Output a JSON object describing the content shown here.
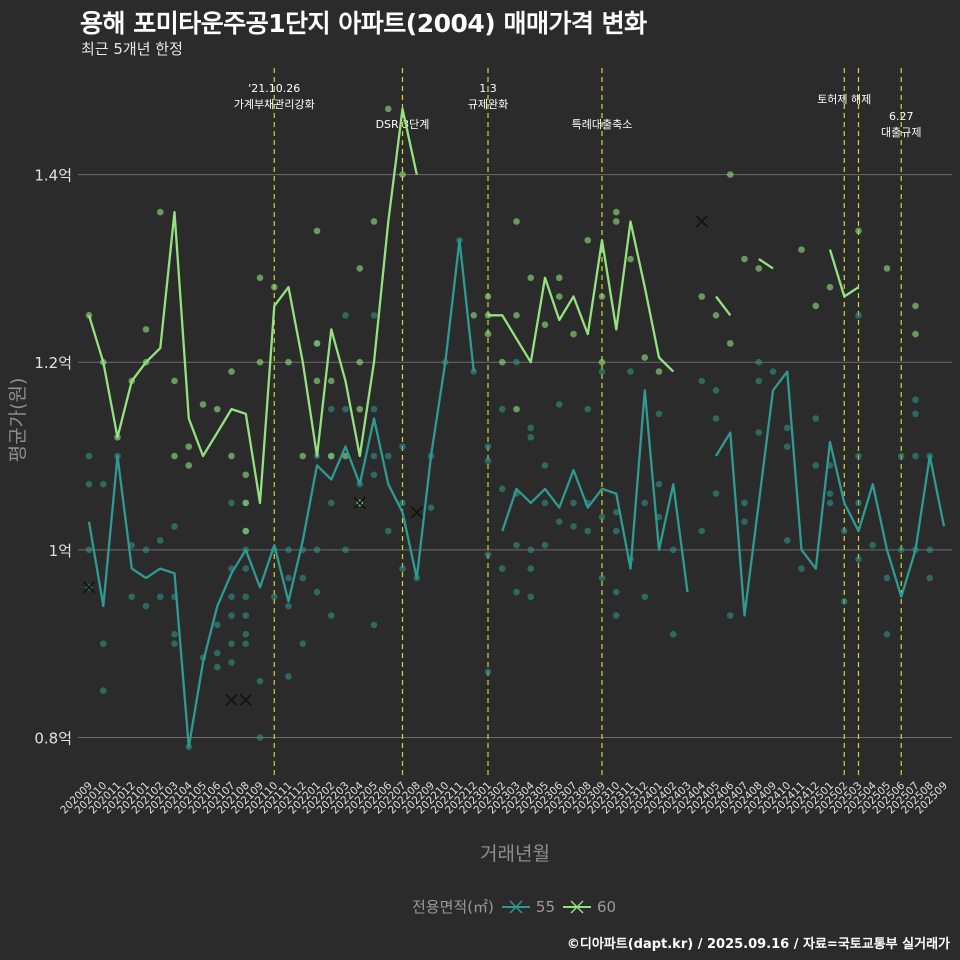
{
  "title": "용해 포미타운주공1단지 아파트(2004) 매매가격 변화",
  "subtitle": "최근 5개년 한정",
  "caption": "©디아파트(dapt.kr) / 2025.09.16 / 자료=국토교통부 실거래가",
  "legend": {
    "title": "전용면적(㎡)"
  },
  "colors": {
    "background": "#2b2b2b",
    "grid": "#6b6b6b",
    "event_line": "#d6d62e",
    "s55": "#2f9a91",
    "s60": "#93e27f"
  },
  "chart_data": {
    "type": "line",
    "xlabel": "거래년월",
    "ylabel": "평균가(원)",
    "ylim": [
      0.76,
      1.52
    ],
    "y_ticks": [
      {
        "value": 0.8,
        "label": "0.8억"
      },
      {
        "value": 1.0,
        "label": "1억"
      },
      {
        "value": 1.2,
        "label": "1.2억"
      },
      {
        "value": 1.4,
        "label": "1.4억"
      }
    ],
    "categories": [
      "202009",
      "202010",
      "202011",
      "202012",
      "202101",
      "202102",
      "202103",
      "202104",
      "202105",
      "202106",
      "202107",
      "202108",
      "202109",
      "202110",
      "202111",
      "202112",
      "202201",
      "202202",
      "202203",
      "202204",
      "202205",
      "202206",
      "202207",
      "202208",
      "202209",
      "202210",
      "202211",
      "202212",
      "202301",
      "202302",
      "202303",
      "202304",
      "202305",
      "202306",
      "202307",
      "202308",
      "202309",
      "202310",
      "202311",
      "202312",
      "202401",
      "202402",
      "202403",
      "202404",
      "202405",
      "202406",
      "202407",
      "202408",
      "202409",
      "202410",
      "202411",
      "202412",
      "202501",
      "202502",
      "202503",
      "202504",
      "202505",
      "202506",
      "202507",
      "202508",
      "202509"
    ],
    "series": [
      {
        "name": "55",
        "color": "#2f9a91",
        "values": [
          1.03,
          0.94,
          1.1,
          0.98,
          0.97,
          0.98,
          0.975,
          0.79,
          0.88,
          0.94,
          0.975,
          1.0,
          0.96,
          1.005,
          0.945,
          1.01,
          1.09,
          1.075,
          1.11,
          1.07,
          1.14,
          1.07,
          1.04,
          0.97,
          1.1,
          1.2,
          1.33,
          1.19,
          null,
          1.02,
          1.065,
          1.05,
          1.065,
          1.045,
          1.085,
          1.045,
          1.065,
          1.06,
          0.98,
          1.17,
          1.0,
          1.07,
          0.955,
          null,
          1.1,
          1.125,
          0.93,
          1.05,
          1.17,
          1.19,
          1.0,
          0.98,
          1.115,
          1.05,
          1.02,
          1.07,
          1.0,
          0.95,
          1.0,
          1.1,
          1.025
        ]
      },
      {
        "name": "60",
        "color": "#93e27f",
        "values": [
          1.25,
          1.2,
          1.12,
          1.18,
          1.2,
          1.215,
          1.36,
          1.14,
          1.1,
          1.125,
          1.15,
          1.145,
          1.05,
          1.26,
          1.28,
          1.2,
          1.1,
          1.235,
          1.18,
          1.1,
          1.2,
          1.35,
          1.47,
          1.4,
          null,
          null,
          null,
          null,
          1.25,
          1.25,
          1.225,
          1.2,
          1.29,
          1.245,
          1.27,
          1.23,
          1.33,
          1.235,
          1.35,
          1.28,
          1.205,
          1.19,
          null,
          null,
          1.27,
          1.25,
          null,
          1.31,
          1.3,
          null,
          null,
          null,
          1.32,
          1.27,
          1.28,
          null,
          1.34,
          null,
          1.3,
          null,
          1.25
        ]
      }
    ],
    "scatter_55": [
      [
        0,
        1.1
      ],
      [
        0,
        1.07
      ],
      [
        0,
        1.0
      ],
      [
        0,
        0.96
      ],
      [
        1,
        1.07
      ],
      [
        1,
        0.9
      ],
      [
        1,
        0.85
      ],
      [
        2,
        1.1
      ],
      [
        3,
        1.005
      ],
      [
        3,
        0.95
      ],
      [
        4,
        1.0
      ],
      [
        4,
        0.94
      ],
      [
        5,
        1.01
      ],
      [
        5,
        0.95
      ],
      [
        6,
        1.025
      ],
      [
        6,
        0.95
      ],
      [
        6,
        0.91
      ],
      [
        6,
        0.9
      ],
      [
        7,
        0.79
      ],
      [
        8,
        0.885
      ],
      [
        9,
        0.92
      ],
      [
        9,
        0.89
      ],
      [
        9,
        0.875
      ],
      [
        10,
        1.05
      ],
      [
        10,
        0.98
      ],
      [
        10,
        0.95
      ],
      [
        10,
        0.93
      ],
      [
        10,
        0.9
      ],
      [
        10,
        0.88
      ],
      [
        11,
        1.05
      ],
      [
        11,
        1.02
      ],
      [
        11,
        1.0
      ],
      [
        11,
        0.98
      ],
      [
        11,
        0.95
      ],
      [
        11,
        0.93
      ],
      [
        11,
        0.91
      ],
      [
        11,
        0.9
      ],
      [
        12,
        0.86
      ],
      [
        12,
        0.8
      ],
      [
        13,
        1.0
      ],
      [
        13,
        0.95
      ],
      [
        14,
        1.0
      ],
      [
        14,
        0.97
      ],
      [
        14,
        0.94
      ],
      [
        14,
        0.865
      ],
      [
        15,
        1.0
      ],
      [
        15,
        0.97
      ],
      [
        15,
        0.9
      ],
      [
        16,
        1.22
      ],
      [
        16,
        1.1
      ],
      [
        16,
        1.0
      ],
      [
        16,
        0.955
      ],
      [
        17,
        1.15
      ],
      [
        17,
        1.1
      ],
      [
        17,
        1.05
      ],
      [
        17,
        0.93
      ],
      [
        18,
        1.25
      ],
      [
        18,
        1.15
      ],
      [
        18,
        1.0
      ],
      [
        19,
        1.07
      ],
      [
        19,
        1.05
      ],
      [
        20,
        1.25
      ],
      [
        20,
        1.15
      ],
      [
        20,
        1.1
      ],
      [
        20,
        1.08
      ],
      [
        20,
        0.92
      ],
      [
        21,
        1.1
      ],
      [
        21,
        1.02
      ],
      [
        22,
        1.11
      ],
      [
        22,
        1.05
      ],
      [
        22,
        0.98
      ],
      [
        23,
        0.97
      ],
      [
        24,
        1.1
      ],
      [
        24,
        1.045
      ],
      [
        25,
        1.2
      ],
      [
        26,
        1.33
      ],
      [
        27,
        1.19
      ],
      [
        28,
        1.11
      ],
      [
        28,
        1.095
      ],
      [
        28,
        0.995
      ],
      [
        28,
        0.87
      ],
      [
        29,
        1.15
      ],
      [
        29,
        1.065
      ],
      [
        29,
        0.98
      ],
      [
        30,
        1.2
      ],
      [
        30,
        1.06
      ],
      [
        30,
        1.005
      ],
      [
        30,
        0.955
      ],
      [
        31,
        1.13
      ],
      [
        31,
        1.12
      ],
      [
        31,
        1.0
      ],
      [
        31,
        0.98
      ],
      [
        31,
        0.95
      ],
      [
        32,
        1.09
      ],
      [
        32,
        1.05
      ],
      [
        32,
        1.005
      ],
      [
        33,
        1.155
      ],
      [
        33,
        1.03
      ],
      [
        34,
        1.05
      ],
      [
        34,
        1.025
      ],
      [
        35,
        1.15
      ],
      [
        35,
        1.05
      ],
      [
        35,
        1.02
      ],
      [
        36,
        1.19
      ],
      [
        36,
        1.035
      ],
      [
        36,
        0.97
      ],
      [
        37,
        1.04
      ],
      [
        37,
        1.02
      ],
      [
        37,
        0.955
      ],
      [
        37,
        0.93
      ],
      [
        38,
        1.19
      ],
      [
        38,
        0.99
      ],
      [
        39,
        1.05
      ],
      [
        39,
        0.95
      ],
      [
        40,
        1.145
      ],
      [
        40,
        1.07
      ],
      [
        40,
        1.035
      ],
      [
        41,
        1.0
      ],
      [
        41,
        0.91
      ],
      [
        43,
        1.18
      ],
      [
        43,
        1.02
      ],
      [
        44,
        1.17
      ],
      [
        44,
        1.14
      ],
      [
        44,
        1.06
      ],
      [
        45,
        0.93
      ],
      [
        46,
        1.05
      ],
      [
        46,
        1.03
      ],
      [
        47,
        1.2
      ],
      [
        47,
        1.18
      ],
      [
        47,
        1.125
      ],
      [
        48,
        1.19
      ],
      [
        49,
        1.13
      ],
      [
        49,
        1.11
      ],
      [
        49,
        1.01
      ],
      [
        50,
        0.98
      ],
      [
        51,
        1.14
      ],
      [
        51,
        1.09
      ],
      [
        52,
        1.09
      ],
      [
        52,
        1.06
      ],
      [
        52,
        1.05
      ],
      [
        53,
        1.02
      ],
      [
        53,
        0.945
      ],
      [
        54,
        1.25
      ],
      [
        54,
        1.1
      ],
      [
        54,
        1.05
      ],
      [
        54,
        0.99
      ],
      [
        55,
        1.005
      ],
      [
        56,
        0.97
      ],
      [
        56,
        0.91
      ],
      [
        57,
        1.1
      ],
      [
        57,
        1.0
      ],
      [
        58,
        1.16
      ],
      [
        58,
        1.145
      ],
      [
        58,
        1.1
      ],
      [
        58,
        1.0
      ],
      [
        59,
        1.1
      ],
      [
        59,
        1.0
      ],
      [
        59,
        0.97
      ]
    ],
    "scatter_60": [
      [
        0,
        1.25
      ],
      [
        1,
        1.2
      ],
      [
        2,
        1.12
      ],
      [
        3,
        1.18
      ],
      [
        4,
        1.2
      ],
      [
        4,
        1.235
      ],
      [
        5,
        1.36
      ],
      [
        6,
        1.18
      ],
      [
        6,
        1.1
      ],
      [
        7,
        1.11
      ],
      [
        7,
        1.09
      ],
      [
        8,
        1.155
      ],
      [
        9,
        1.15
      ],
      [
        10,
        1.1
      ],
      [
        10,
        1.19
      ],
      [
        11,
        1.08
      ],
      [
        11,
        1.02
      ],
      [
        11,
        1.05
      ],
      [
        12,
        1.29
      ],
      [
        12,
        1.2
      ],
      [
        13,
        1.28
      ],
      [
        14,
        1.2
      ],
      [
        15,
        1.1
      ],
      [
        16,
        1.34
      ],
      [
        16,
        1.22
      ],
      [
        16,
        1.18
      ],
      [
        17,
        1.18
      ],
      [
        17,
        1.1
      ],
      [
        18,
        1.1
      ],
      [
        19,
        1.3
      ],
      [
        19,
        1.15
      ],
      [
        19,
        1.2
      ],
      [
        19,
        1.05
      ],
      [
        20,
        1.35
      ],
      [
        21,
        1.47
      ],
      [
        22,
        1.4
      ],
      [
        27,
        1.25
      ],
      [
        28,
        1.25
      ],
      [
        28,
        1.27
      ],
      [
        28,
        1.23
      ],
      [
        29,
        1.2
      ],
      [
        30,
        1.35
      ],
      [
        30,
        1.25
      ],
      [
        30,
        1.15
      ],
      [
        31,
        1.29
      ],
      [
        32,
        1.24
      ],
      [
        33,
        1.27
      ],
      [
        33,
        1.29
      ],
      [
        34,
        1.23
      ],
      [
        35,
        1.33
      ],
      [
        36,
        1.2
      ],
      [
        36,
        1.27
      ],
      [
        37,
        1.35
      ],
      [
        37,
        1.36
      ],
      [
        38,
        1.31
      ],
      [
        39,
        1.205
      ],
      [
        40,
        1.19
      ],
      [
        43,
        1.27
      ],
      [
        44,
        1.25
      ],
      [
        45,
        1.4
      ],
      [
        45,
        1.22
      ],
      [
        46,
        1.31
      ],
      [
        47,
        1.3
      ],
      [
        50,
        1.32
      ],
      [
        51,
        1.26
      ],
      [
        52,
        1.28
      ],
      [
        54,
        1.34
      ],
      [
        56,
        1.3
      ],
      [
        58,
        1.26
      ],
      [
        58,
        1.23
      ]
    ],
    "crosses_55": [
      [
        0,
        0.96
      ],
      [
        10,
        0.84
      ],
      [
        11,
        0.84
      ],
      [
        19,
        1.05
      ],
      [
        23,
        1.04
      ]
    ],
    "crosses_60": [
      [
        43,
        1.35
      ]
    ],
    "events": [
      {
        "index": 13,
        "label": "'21.10.26\n가계부채관리강화",
        "row": 0
      },
      {
        "index": 22,
        "label": "DSR 3단계",
        "row": 1
      },
      {
        "index": 28,
        "label": "1.3\n규제완화",
        "row": 0
      },
      {
        "index": 36,
        "label": "특례대출축소",
        "row": 1
      },
      {
        "index": 53,
        "label": "토허제 해제",
        "row": 0
      },
      {
        "index": 54,
        "label": "",
        "row": 0
      },
      {
        "index": 57,
        "label": "6.27\n대출규제",
        "row": 2
      }
    ]
  }
}
